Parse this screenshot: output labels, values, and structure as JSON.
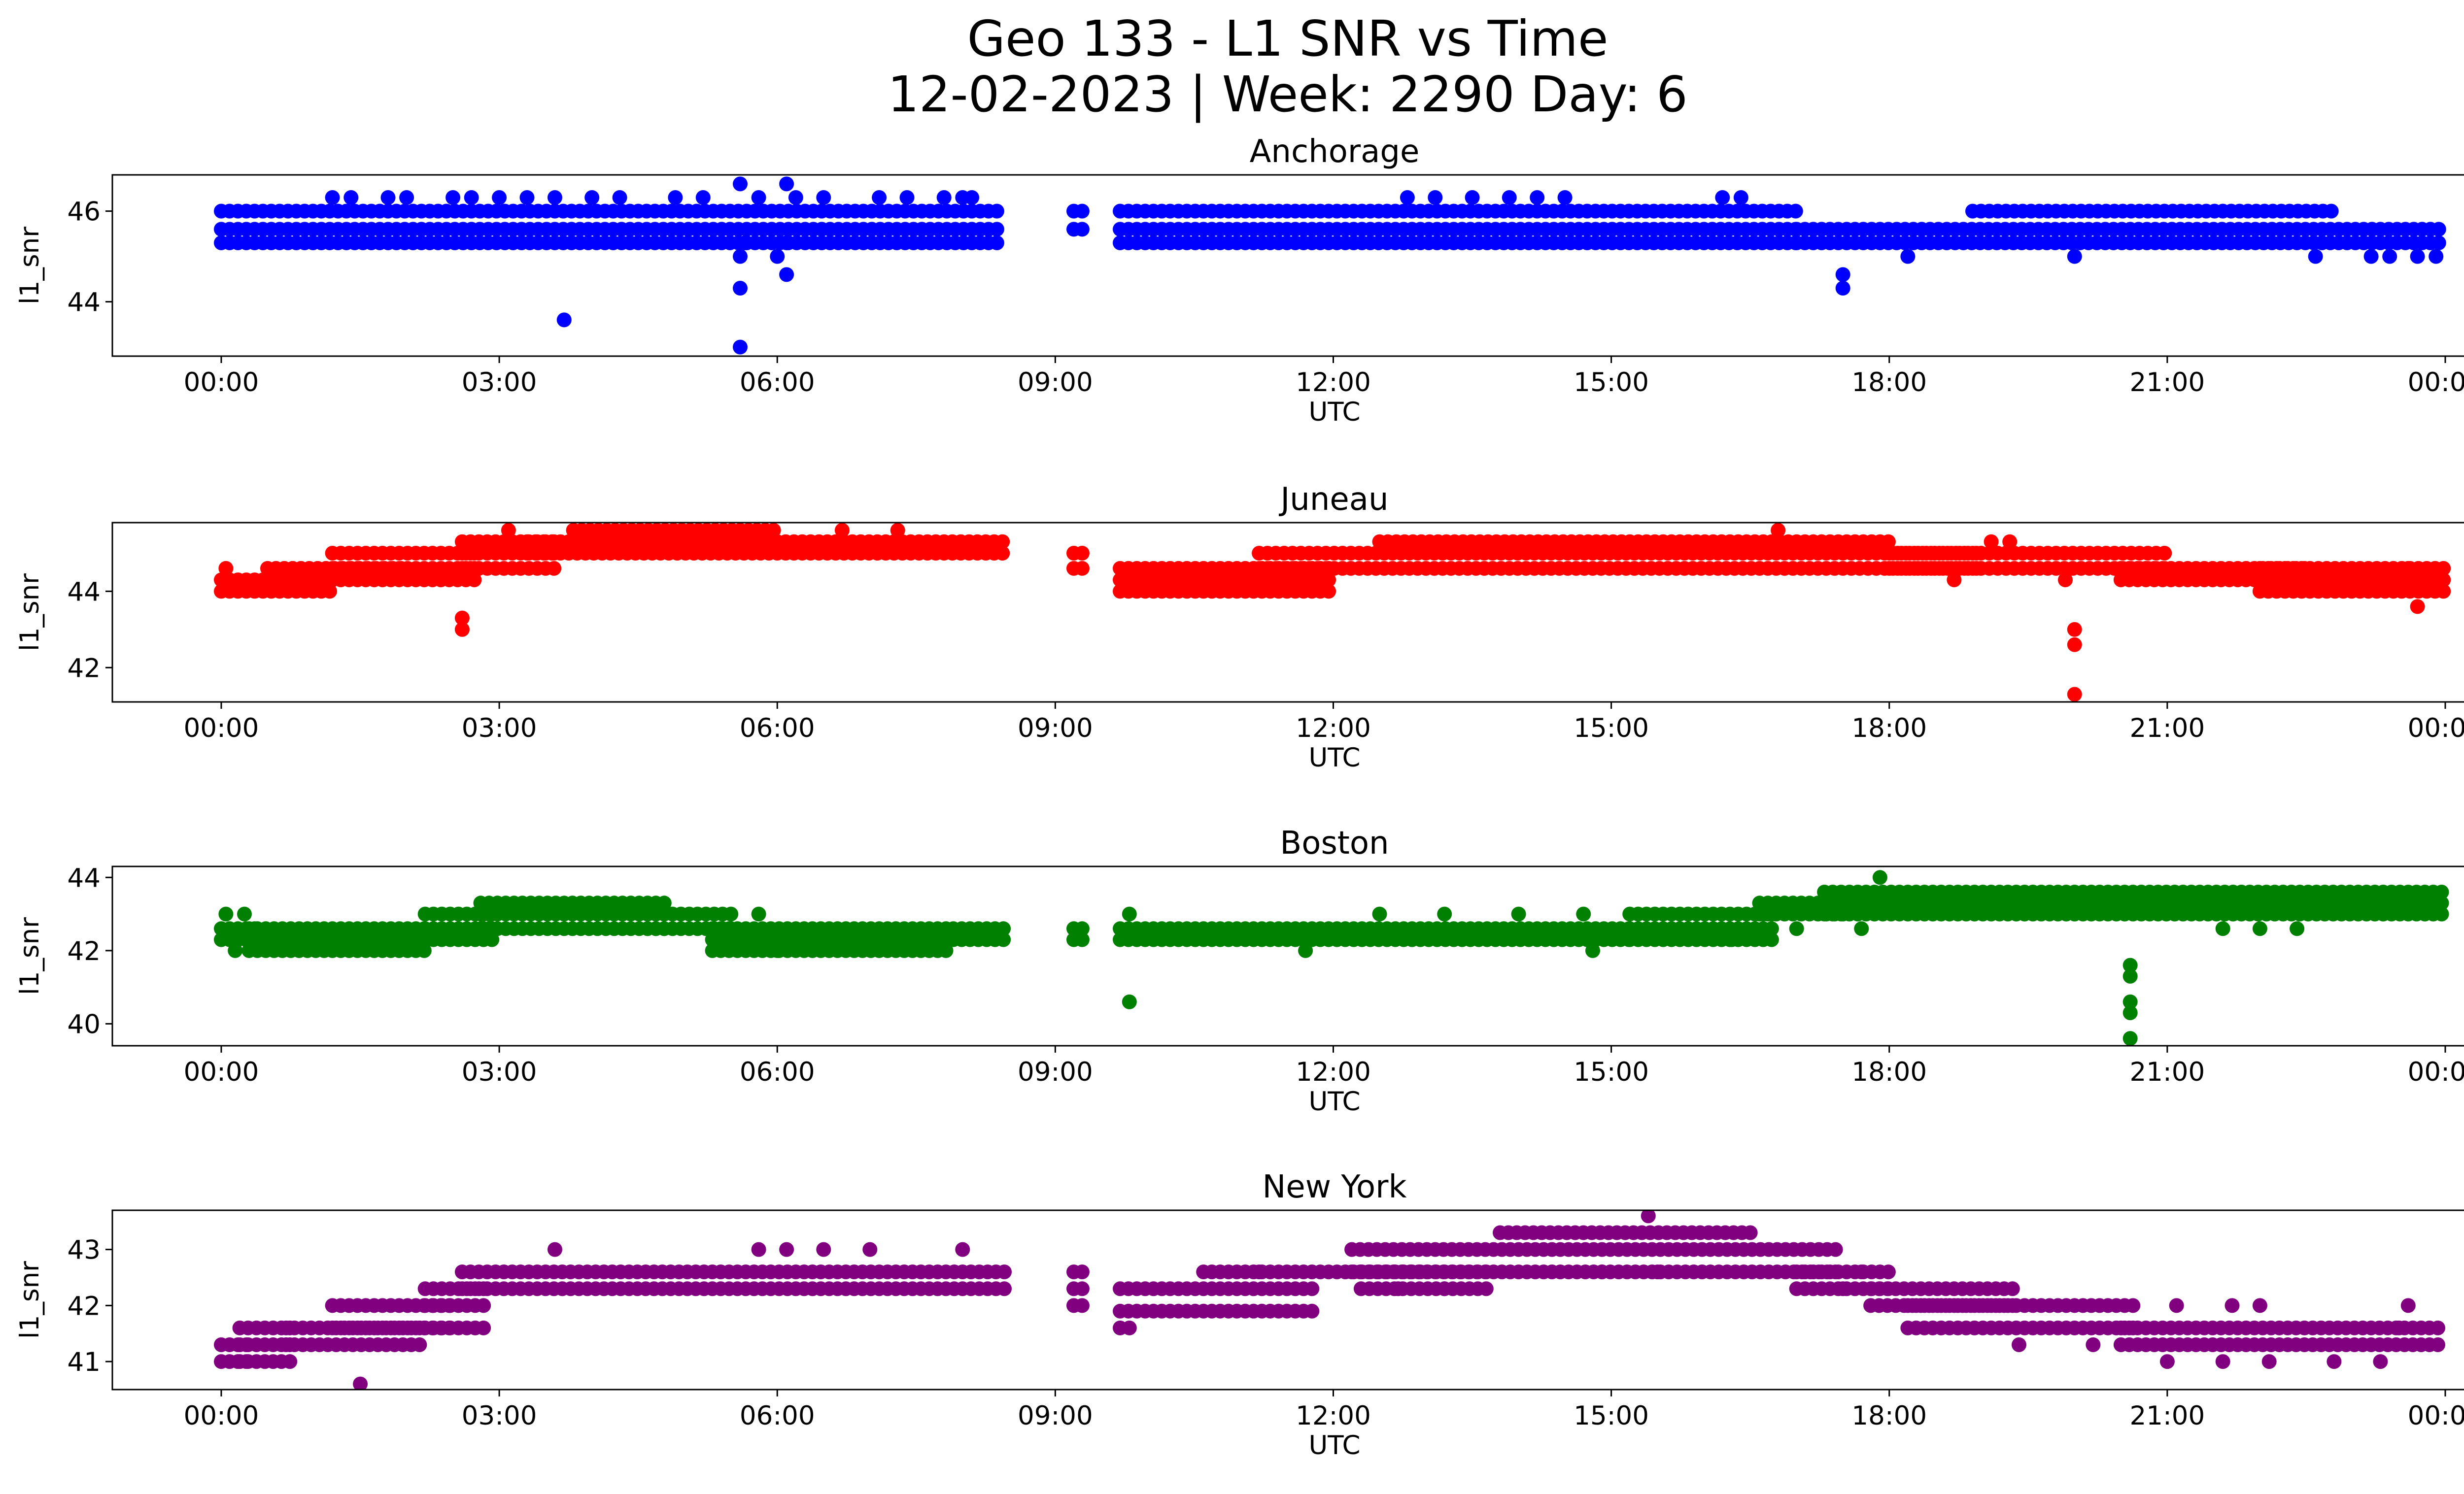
{
  "figure": {
    "title_line1": "Geo 133 - L1 SNR vs Time",
    "title_line2": "12-02-2023 | Week: 2290 Day: 6"
  },
  "x_ticks": [
    "00:00",
    "03:00",
    "06:00",
    "09:00",
    "12:00",
    "15:00",
    "18:00",
    "21:00",
    "00:00"
  ],
  "chart_data": [
    {
      "type": "scatter",
      "title": "Anchorage",
      "xlabel": "UTC",
      "ylabel": "l1_snr",
      "color": "#0000ff",
      "x_range": [
        "00:00",
        "24:00"
      ],
      "ylim": [
        42.8,
        46.8
      ],
      "yticks": [
        44,
        46
      ],
      "ytick_labels": [
        "44",
        "46"
      ],
      "bands": [
        {
          "x0": 0.0,
          "x1": 8.45,
          "ys": [
            45.3,
            45.6,
            46.0
          ]
        },
        {
          "x0": 9.2,
          "x1": 9.3,
          "ys": [
            45.6,
            46.0
          ]
        },
        {
          "x0": 9.7,
          "x1": 17.0,
          "ys": [
            45.3,
            45.6,
            46.0
          ]
        },
        {
          "x0": 17.0,
          "x1": 24.0,
          "ys": [
            45.3,
            45.6
          ]
        },
        {
          "x0": 18.9,
          "x1": 22.8,
          "ys": [
            46.0
          ]
        }
      ],
      "points": [
        [
          1.2,
          46.3
        ],
        [
          1.4,
          46.3
        ],
        [
          1.8,
          46.3
        ],
        [
          2.0,
          46.3
        ],
        [
          2.5,
          46.3
        ],
        [
          2.7,
          46.3
        ],
        [
          3.0,
          46.3
        ],
        [
          3.3,
          46.3
        ],
        [
          3.6,
          46.3
        ],
        [
          4.0,
          46.3
        ],
        [
          4.3,
          46.3
        ],
        [
          4.9,
          46.3
        ],
        [
          5.2,
          46.3
        ],
        [
          5.8,
          46.3
        ],
        [
          6.2,
          46.3
        ],
        [
          6.5,
          46.3
        ],
        [
          7.1,
          46.3
        ],
        [
          7.4,
          46.3
        ],
        [
          7.8,
          46.3
        ],
        [
          8.0,
          46.3
        ],
        [
          8.1,
          46.3
        ],
        [
          12.8,
          46.3
        ],
        [
          13.1,
          46.3
        ],
        [
          13.5,
          46.3
        ],
        [
          13.9,
          46.3
        ],
        [
          14.2,
          46.3
        ],
        [
          14.5,
          46.3
        ],
        [
          16.2,
          46.3
        ],
        [
          16.4,
          46.3
        ],
        [
          5.6,
          46.6
        ],
        [
          6.1,
          46.6
        ],
        [
          5.6,
          45.0
        ],
        [
          5.65,
          45.3
        ],
        [
          6.0,
          45.0
        ],
        [
          6.1,
          45.3
        ],
        [
          5.6,
          44.3
        ],
        [
          6.1,
          44.6
        ],
        [
          3.7,
          43.6
        ],
        [
          5.6,
          43.0
        ],
        [
          17.5,
          44.6
        ],
        [
          17.5,
          44.3
        ],
        [
          18.2,
          45.0
        ],
        [
          20.0,
          45.0
        ],
        [
          22.6,
          45.0
        ],
        [
          23.2,
          45.0
        ],
        [
          23.4,
          45.0
        ],
        [
          23.7,
          45.0
        ],
        [
          23.9,
          45.0
        ]
      ]
    },
    {
      "type": "scatter",
      "title": "Juneau",
      "xlabel": "UTC",
      "ylabel": "l1_snr",
      "color": "#ff0000",
      "x_range": [
        "00:00",
        "24:00"
      ],
      "ylim": [
        41.1,
        45.8
      ],
      "yticks": [
        42,
        44
      ],
      "ytick_labels": [
        "42",
        "44"
      ],
      "bands": [
        {
          "x0": 0.0,
          "x1": 1.2,
          "ys": [
            44.0,
            44.3
          ]
        },
        {
          "x0": 0.5,
          "x1": 2.0,
          "ys": [
            44.6
          ]
        },
        {
          "x0": 1.2,
          "x1": 2.8,
          "ys": [
            44.3,
            44.6,
            45.0
          ]
        },
        {
          "x0": 2.6,
          "x1": 3.6,
          "ys": [
            44.6,
            45.0,
            45.3
          ]
        },
        {
          "x0": 3.3,
          "x1": 8.45,
          "ys": [
            45.0,
            45.3
          ]
        },
        {
          "x0": 3.8,
          "x1": 6.0,
          "ys": [
            45.6
          ]
        },
        {
          "x0": 9.2,
          "x1": 9.3,
          "ys": [
            44.6,
            45.0
          ]
        },
        {
          "x0": 9.7,
          "x1": 12.0,
          "ys": [
            44.0,
            44.3,
            44.6
          ]
        },
        {
          "x0": 11.2,
          "x1": 19.0,
          "ys": [
            44.6,
            45.0
          ]
        },
        {
          "x0": 12.5,
          "x1": 18.0,
          "ys": [
            45.3
          ]
        },
        {
          "x0": 18.0,
          "x1": 21.0,
          "ys": [
            44.6,
            45.0
          ]
        },
        {
          "x0": 20.5,
          "x1": 22.5,
          "ys": [
            44.3,
            44.6
          ]
        },
        {
          "x0": 22.0,
          "x1": 24.0,
          "ys": [
            44.0,
            44.3,
            44.6
          ]
        }
      ],
      "points": [
        [
          0.05,
          44.6
        ],
        [
          2.6,
          43.3
        ],
        [
          2.6,
          43.0
        ],
        [
          6.7,
          45.6
        ],
        [
          7.3,
          45.6
        ],
        [
          3.1,
          45.6
        ],
        [
          16.8,
          45.6
        ],
        [
          19.1,
          45.3
        ],
        [
          19.3,
          45.3
        ],
        [
          18.7,
          44.3
        ],
        [
          19.9,
          44.3
        ],
        [
          20.0,
          43.0
        ],
        [
          20.0,
          42.6
        ],
        [
          20.0,
          41.3
        ],
        [
          23.7,
          43.6
        ],
        [
          23.6,
          44.6
        ]
      ]
    },
    {
      "type": "scatter",
      "title": "Boston",
      "xlabel": "UTC",
      "ylabel": "l1_snr",
      "color": "#008000",
      "x_range": [
        "00:00",
        "24:00"
      ],
      "ylim": [
        39.4,
        44.3
      ],
      "yticks": [
        40,
        42,
        44
      ],
      "ytick_labels": [
        "40",
        "42",
        "44"
      ],
      "bands": [
        {
          "x0": 0.0,
          "x1": 0.4,
          "ys": [
            42.3,
            42.6
          ]
        },
        {
          "x0": 0.3,
          "x1": 2.2,
          "ys": [
            42.0,
            42.3,
            42.6
          ]
        },
        {
          "x0": 2.2,
          "x1": 3.0,
          "ys": [
            42.3,
            42.6,
            43.0
          ]
        },
        {
          "x0": 2.8,
          "x1": 4.8,
          "ys": [
            42.6,
            43.0,
            43.3
          ]
        },
        {
          "x0": 4.6,
          "x1": 5.5,
          "ys": [
            42.6,
            43.0
          ]
        },
        {
          "x0": 5.3,
          "x1": 7.9,
          "ys": [
            42.0,
            42.3,
            42.6
          ]
        },
        {
          "x0": 7.9,
          "x1": 8.45,
          "ys": [
            42.3,
            42.6
          ]
        },
        {
          "x0": 9.2,
          "x1": 9.3,
          "ys": [
            42.3,
            42.6
          ]
        },
        {
          "x0": 9.7,
          "x1": 15.2,
          "ys": [
            42.3,
            42.6
          ]
        },
        {
          "x0": 15.2,
          "x1": 16.8,
          "ys": [
            42.3,
            42.6,
            43.0
          ]
        },
        {
          "x0": 16.6,
          "x1": 17.5,
          "ys": [
            43.0,
            43.3
          ]
        },
        {
          "x0": 17.3,
          "x1": 24.0,
          "ys": [
            43.0,
            43.3,
            43.6
          ]
        }
      ],
      "points": [
        [
          0.05,
          43.0
        ],
        [
          0.25,
          43.0
        ],
        [
          0.15,
          42.0
        ],
        [
          5.8,
          43.0
        ],
        [
          6.0,
          42.0
        ],
        [
          9.8,
          43.0
        ],
        [
          9.8,
          40.6
        ],
        [
          11.7,
          42.0
        ],
        [
          14.7,
          43.0
        ],
        [
          14.8,
          42.0
        ],
        [
          12.5,
          43.0
        ],
        [
          13.2,
          43.0
        ],
        [
          14.0,
          43.0
        ],
        [
          17.9,
          44.0
        ],
        [
          17.7,
          42.6
        ],
        [
          20.6,
          41.6
        ],
        [
          20.6,
          41.3
        ],
        [
          20.6,
          40.6
        ],
        [
          20.6,
          40.3
        ],
        [
          20.6,
          39.6
        ],
        [
          21.6,
          42.6
        ],
        [
          22.0,
          42.6
        ],
        [
          22.4,
          42.6
        ],
        [
          17.0,
          42.6
        ],
        [
          16.3,
          42.3
        ]
      ]
    },
    {
      "type": "scatter",
      "title": "New York",
      "xlabel": "UTC",
      "ylabel": "l1_snr",
      "color": "#800080",
      "x_range": [
        "00:00",
        "24:00"
      ],
      "ylim": [
        40.5,
        43.7
      ],
      "yticks": [
        41,
        42,
        43
      ],
      "ytick_labels": [
        "41",
        "42",
        "43"
      ],
      "bands": [
        {
          "x0": 0.0,
          "x1": 0.3,
          "ys": [
            41.0,
            41.3
          ]
        },
        {
          "x0": 0.2,
          "x1": 0.8,
          "ys": [
            41.0,
            41.3,
            41.6
          ]
        },
        {
          "x0": 0.7,
          "x1": 2.2,
          "ys": [
            41.3,
            41.6
          ]
        },
        {
          "x0": 1.2,
          "x1": 2.5,
          "ys": [
            41.6,
            42.0
          ]
        },
        {
          "x0": 2.2,
          "x1": 2.9,
          "ys": [
            41.6,
            42.0,
            42.3
          ]
        },
        {
          "x0": 2.6,
          "x1": 8.45,
          "ys": [
            42.3,
            42.6
          ]
        },
        {
          "x0": 9.2,
          "x1": 9.3,
          "ys": [
            42.0,
            42.3,
            42.6
          ]
        },
        {
          "x0": 9.7,
          "x1": 11.8,
          "ys": [
            41.9,
            42.3
          ]
        },
        {
          "x0": 10.6,
          "x1": 13.0,
          "ys": [
            42.6
          ]
        },
        {
          "x0": 12.3,
          "x1": 13.7,
          "ys": [
            42.3,
            42.6
          ]
        },
        {
          "x0": 12.2,
          "x1": 17.5,
          "ys": [
            42.6,
            43.0
          ]
        },
        {
          "x0": 13.8,
          "x1": 16.5,
          "ys": [
            43.3
          ]
        },
        {
          "x0": 17.0,
          "x1": 18.0,
          "ys": [
            42.3,
            42.6
          ]
        },
        {
          "x0": 17.8,
          "x1": 19.4,
          "ys": [
            42.0,
            42.3
          ]
        },
        {
          "x0": 18.2,
          "x1": 20.7,
          "ys": [
            41.6,
            42.0
          ]
        },
        {
          "x0": 20.5,
          "x1": 24.0,
          "ys": [
            41.3,
            41.6
          ]
        }
      ],
      "points": [
        [
          1.5,
          40.6
        ],
        [
          15.4,
          43.6
        ],
        [
          3.6,
          43.0
        ],
        [
          5.8,
          43.0
        ],
        [
          6.1,
          43.0
        ],
        [
          6.5,
          43.0
        ],
        [
          7.0,
          43.0
        ],
        [
          8.0,
          43.0
        ],
        [
          9.8,
          41.6
        ],
        [
          9.7,
          41.6
        ],
        [
          11.2,
          42.6
        ],
        [
          12.7,
          42.3
        ],
        [
          13.2,
          42.3
        ],
        [
          14.9,
          42.6
        ],
        [
          15.5,
          42.6
        ],
        [
          17.5,
          42.3
        ],
        [
          17.7,
          42.6
        ],
        [
          19.4,
          41.3
        ],
        [
          20.2,
          41.3
        ],
        [
          21.1,
          42.0
        ],
        [
          21.7,
          42.0
        ],
        [
          22.0,
          42.0
        ],
        [
          23.6,
          42.0
        ],
        [
          21.0,
          41.0
        ],
        [
          21.6,
          41.0
        ],
        [
          22.1,
          41.0
        ],
        [
          22.8,
          41.0
        ],
        [
          23.3,
          41.0
        ],
        [
          23.5,
          41.6
        ]
      ]
    }
  ]
}
